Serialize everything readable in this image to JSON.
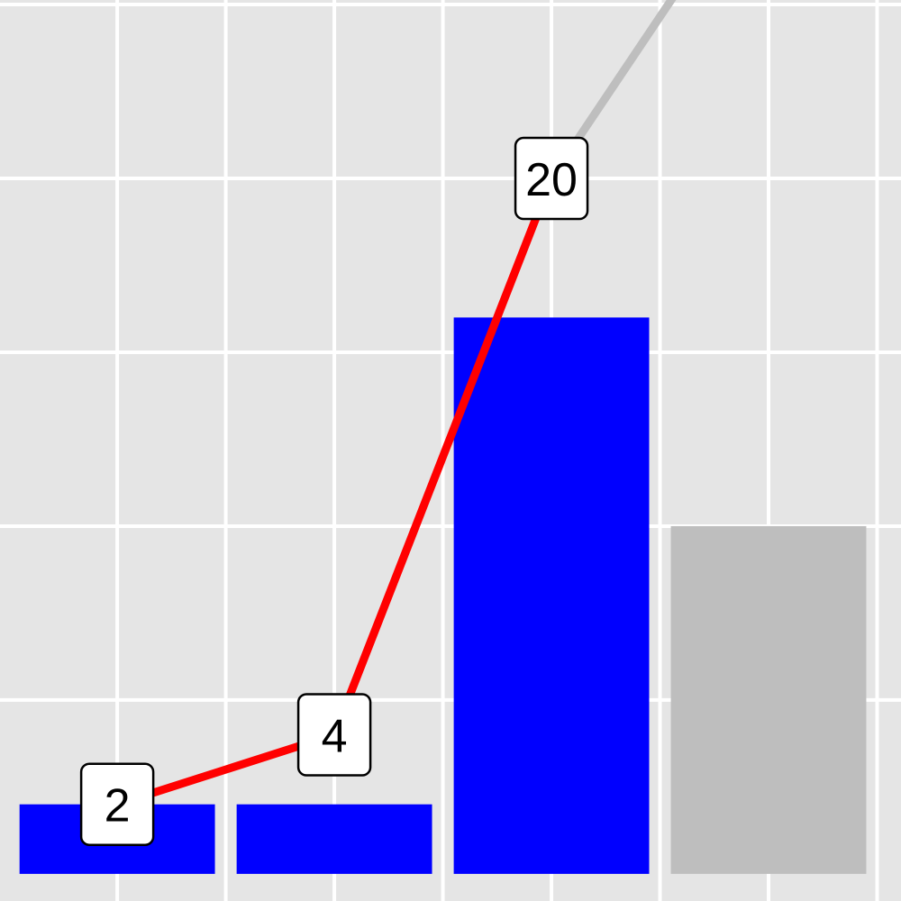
{
  "chart_data": {
    "type": "combo",
    "x": [
      1,
      2,
      3,
      4
    ],
    "xlim": [
      0.46,
      4.61
    ],
    "ylim": [
      -0.78,
      25.13
    ],
    "xticks": [
      1,
      1.5,
      2,
      2.5,
      3,
      3.5,
      4,
      4.5
    ],
    "yticks": [
      5,
      10,
      15,
      20,
      25
    ],
    "grid": true,
    "highlight": [
      true,
      true,
      true,
      false
    ],
    "muted_color": "#bebebe",
    "series": [
      {
        "type": "bar",
        "color": "#0000ff",
        "values": [
          2,
          2,
          16,
          10
        ]
      },
      {
        "type": "line",
        "color": "#ff0000",
        "values": [
          2,
          4,
          20,
          29.3
        ]
      }
    ]
  }
}
